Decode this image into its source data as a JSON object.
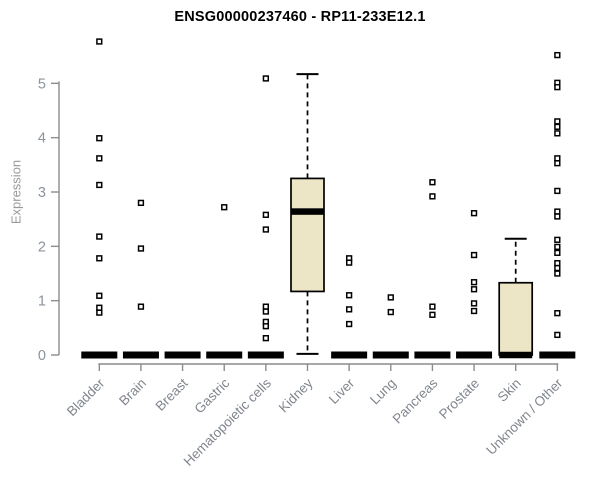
{
  "title": "ENSG00000237460 - RP11-233E12.1",
  "y_axis": {
    "label": "Expression",
    "ticks": [
      0,
      1,
      2,
      3,
      4,
      5
    ]
  },
  "colors": {
    "background": "#FFFFFF",
    "box_fill": "#EDE6C6",
    "box_stroke": "#000000",
    "median": "#000000",
    "outlier_stroke": "#000000",
    "outlier_fill": "#FFFFFF",
    "axis": "#8C8C8C",
    "tick_label": "#8B939E",
    "x_label": "#81868E",
    "y_label": "#999999",
    "title": "#000000"
  },
  "chart_data": {
    "type": "boxplot",
    "title": "ENSG00000237460 - RP11-233E12.1",
    "xlabel": "",
    "ylabel": "Expression",
    "ylim": [
      0,
      5.9
    ],
    "grid": false,
    "legend": "none",
    "categories": [
      "Bladder",
      "Brain",
      "Breast",
      "Gastric",
      "Hematopoietic cells",
      "Kidney",
      "Liver",
      "Lung",
      "Pancreas",
      "Prostate",
      "Skin",
      "Unknown / Other"
    ],
    "series": [
      {
        "name": "Bladder",
        "q1": 0,
        "median": 0,
        "q3": 0,
        "whisker_low": 0,
        "whisker_high": 0,
        "outliers": [
          5.77,
          3.99,
          3.62,
          3.13,
          2.18,
          1.78,
          1.09,
          0.87,
          0.78
        ]
      },
      {
        "name": "Brain",
        "q1": 0,
        "median": 0,
        "q3": 0,
        "whisker_low": 0,
        "whisker_high": 0,
        "outliers": [
          2.8,
          1.96,
          0.89
        ]
      },
      {
        "name": "Breast",
        "q1": 0,
        "median": 0,
        "q3": 0,
        "whisker_low": 0,
        "whisker_high": 0,
        "outliers": []
      },
      {
        "name": "Gastric",
        "q1": 0,
        "median": 0,
        "q3": 0,
        "whisker_low": 0,
        "whisker_high": 0,
        "outliers": [
          2.72
        ]
      },
      {
        "name": "Hematopoietic cells",
        "q1": 0,
        "median": 0,
        "q3": 0,
        "whisker_low": 0,
        "whisker_high": 0,
        "outliers": [
          5.09,
          2.58,
          2.31,
          0.89,
          0.8,
          0.61,
          0.53,
          0.31
        ]
      },
      {
        "name": "Kidney",
        "q1": 1.17,
        "median": 2.64,
        "q3": 3.25,
        "whisker_low": 0.02,
        "whisker_high": 5.17,
        "outliers": []
      },
      {
        "name": "Liver",
        "q1": 0,
        "median": 0,
        "q3": 0,
        "whisker_low": 0,
        "whisker_high": 0,
        "outliers": [
          1.78,
          1.7,
          1.1,
          0.84,
          0.57
        ]
      },
      {
        "name": "Lung",
        "q1": 0,
        "median": 0,
        "q3": 0,
        "whisker_low": 0,
        "whisker_high": 0,
        "outliers": [
          1.06,
          0.79
        ]
      },
      {
        "name": "Pancreas",
        "q1": 0,
        "median": 0,
        "q3": 0,
        "whisker_low": 0,
        "whisker_high": 0,
        "outliers": [
          3.18,
          2.92,
          0.89,
          0.74
        ]
      },
      {
        "name": "Prostate",
        "q1": 0,
        "median": 0,
        "q3": 0,
        "whisker_low": 0,
        "whisker_high": 0,
        "outliers": [
          2.61,
          1.84,
          1.34,
          1.21,
          0.95,
          0.81
        ]
      },
      {
        "name": "Skin",
        "q1": 0,
        "median": 0,
        "q3": 1.33,
        "whisker_low": 0,
        "whisker_high": 2.14,
        "outliers": []
      },
      {
        "name": "Unknown / Other",
        "q1": 0,
        "median": 0,
        "q3": 0,
        "whisker_low": 0,
        "whisker_high": 0,
        "outliers": [
          5.52,
          5.01,
          4.93,
          4.3,
          4.2,
          4.08,
          3.62,
          3.53,
          3.02,
          2.64,
          2.55,
          2.12,
          1.99,
          1.88,
          1.69,
          1.6,
          1.5,
          0.77,
          0.37
        ]
      }
    ]
  }
}
